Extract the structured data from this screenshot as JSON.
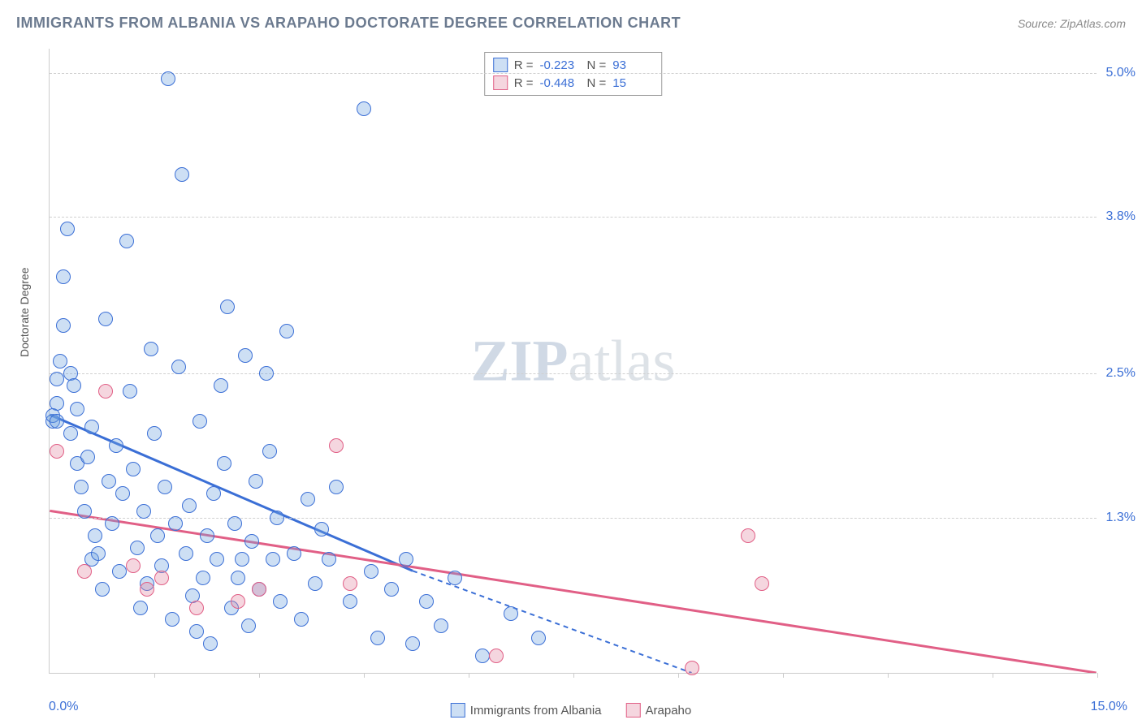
{
  "title": "IMMIGRANTS FROM ALBANIA VS ARAPAHO DOCTORATE DEGREE CORRELATION CHART",
  "source": "Source: ZipAtlas.com",
  "watermark": {
    "bold": "ZIP",
    "rest": "atlas"
  },
  "ylabel": "Doctorate Degree",
  "chart": {
    "type": "scatter",
    "xlim": [
      0,
      15
    ],
    "ylim": [
      0,
      5.2
    ],
    "background_color": "#ffffff",
    "grid_color": "#d0d0d0",
    "x_axis_min_label": "0.0%",
    "x_axis_max_label": "15.0%",
    "ytick_labels": [
      {
        "y": 1.3,
        "label": "1.3%"
      },
      {
        "y": 2.5,
        "label": "2.5%"
      },
      {
        "y": 3.8,
        "label": "3.8%"
      },
      {
        "y": 5.0,
        "label": "5.0%"
      }
    ],
    "xtick_positions": [
      1.5,
      3.0,
      4.5,
      6.0,
      7.5,
      9.0,
      10.5,
      12.0,
      13.5,
      15.0
    ],
    "point_radius": 9,
    "point_fill_opacity": 0.35,
    "point_stroke_opacity": 0.9,
    "trend_line_width": 3,
    "series": [
      {
        "name": "Immigrants from Albania",
        "key": "albania",
        "color": "#6fa3e0",
        "stroke_color": "#3b6fd6",
        "fill_color": "rgba(111,163,224,0.35)",
        "R": "-0.223",
        "N": "93",
        "trend": {
          "x1": 0,
          "y1": 2.15,
          "x2": 5.2,
          "y2": 0.85,
          "dash_x2": 9.2,
          "dash_y2": 0.0
        },
        "points": [
          [
            0.05,
            2.1
          ],
          [
            0.1,
            2.45
          ],
          [
            0.1,
            2.25
          ],
          [
            0.15,
            2.6
          ],
          [
            0.2,
            2.9
          ],
          [
            0.2,
            3.3
          ],
          [
            0.25,
            3.7
          ],
          [
            0.3,
            2.5
          ],
          [
            0.3,
            2.0
          ],
          [
            0.35,
            2.4
          ],
          [
            0.4,
            2.2
          ],
          [
            0.4,
            1.75
          ],
          [
            0.45,
            1.55
          ],
          [
            0.5,
            1.35
          ],
          [
            0.55,
            1.8
          ],
          [
            0.6,
            2.05
          ],
          [
            0.6,
            0.95
          ],
          [
            0.65,
            1.15
          ],
          [
            0.7,
            1.0
          ],
          [
            0.75,
            0.7
          ],
          [
            0.8,
            2.95
          ],
          [
            0.85,
            1.6
          ],
          [
            0.9,
            1.25
          ],
          [
            0.95,
            1.9
          ],
          [
            1.0,
            0.85
          ],
          [
            1.05,
            1.5
          ],
          [
            1.1,
            3.6
          ],
          [
            1.15,
            2.35
          ],
          [
            1.2,
            1.7
          ],
          [
            1.25,
            1.05
          ],
          [
            1.3,
            0.55
          ],
          [
            1.35,
            1.35
          ],
          [
            1.4,
            0.75
          ],
          [
            1.45,
            2.7
          ],
          [
            1.5,
            2.0
          ],
          [
            1.55,
            1.15
          ],
          [
            1.6,
            0.9
          ],
          [
            1.65,
            1.55
          ],
          [
            1.7,
            4.95
          ],
          [
            1.75,
            0.45
          ],
          [
            1.8,
            1.25
          ],
          [
            1.85,
            2.55
          ],
          [
            1.9,
            4.15
          ],
          [
            1.95,
            1.0
          ],
          [
            2.0,
            1.4
          ],
          [
            2.05,
            0.65
          ],
          [
            2.1,
            0.35
          ],
          [
            2.15,
            2.1
          ],
          [
            2.2,
            0.8
          ],
          [
            2.25,
            1.15
          ],
          [
            2.3,
            0.25
          ],
          [
            2.35,
            1.5
          ],
          [
            2.4,
            0.95
          ],
          [
            2.45,
            2.4
          ],
          [
            2.5,
            1.75
          ],
          [
            2.55,
            3.05
          ],
          [
            2.6,
            0.55
          ],
          [
            2.65,
            1.25
          ],
          [
            2.7,
            0.8
          ],
          [
            2.75,
            0.95
          ],
          [
            2.8,
            2.65
          ],
          [
            2.85,
            0.4
          ],
          [
            2.9,
            1.1
          ],
          [
            2.95,
            1.6
          ],
          [
            3.0,
            0.7
          ],
          [
            3.1,
            2.5
          ],
          [
            3.15,
            1.85
          ],
          [
            3.2,
            0.95
          ],
          [
            3.25,
            1.3
          ],
          [
            3.3,
            0.6
          ],
          [
            3.4,
            2.85
          ],
          [
            3.5,
            1.0
          ],
          [
            3.6,
            0.45
          ],
          [
            3.7,
            1.45
          ],
          [
            3.8,
            0.75
          ],
          [
            3.9,
            1.2
          ],
          [
            4.0,
            0.95
          ],
          [
            4.1,
            1.55
          ],
          [
            4.3,
            0.6
          ],
          [
            4.5,
            4.7
          ],
          [
            4.6,
            0.85
          ],
          [
            4.7,
            0.3
          ],
          [
            4.9,
            0.7
          ],
          [
            5.1,
            0.95
          ],
          [
            5.2,
            0.25
          ],
          [
            5.4,
            0.6
          ],
          [
            5.6,
            0.4
          ],
          [
            5.8,
            0.8
          ],
          [
            6.2,
            0.15
          ],
          [
            6.6,
            0.5
          ],
          [
            7.0,
            0.3
          ],
          [
            0.05,
            2.15
          ],
          [
            0.1,
            2.1
          ]
        ]
      },
      {
        "name": "Arapaho",
        "key": "arapaho",
        "color": "#e28aa2",
        "stroke_color": "#e15f86",
        "fill_color": "rgba(226,138,162,0.35)",
        "R": "-0.448",
        "N": "15",
        "trend": {
          "x1": 0,
          "y1": 1.35,
          "x2": 15,
          "y2": 0.0
        },
        "points": [
          [
            0.1,
            1.85
          ],
          [
            0.5,
            0.85
          ],
          [
            0.8,
            2.35
          ],
          [
            1.2,
            0.9
          ],
          [
            1.4,
            0.7
          ],
          [
            1.6,
            0.8
          ],
          [
            2.1,
            0.55
          ],
          [
            2.7,
            0.6
          ],
          [
            3.0,
            0.7
          ],
          [
            4.1,
            1.9
          ],
          [
            4.3,
            0.75
          ],
          [
            6.4,
            0.15
          ],
          [
            9.2,
            0.05
          ],
          [
            10.2,
            0.75
          ],
          [
            10.0,
            1.15
          ]
        ]
      }
    ]
  },
  "colors": {
    "title_color": "#6b7a8f",
    "source_color": "#8a8a8a",
    "tick_label_color": "#3b6fd6",
    "axis_line_color": "#cccccc"
  }
}
